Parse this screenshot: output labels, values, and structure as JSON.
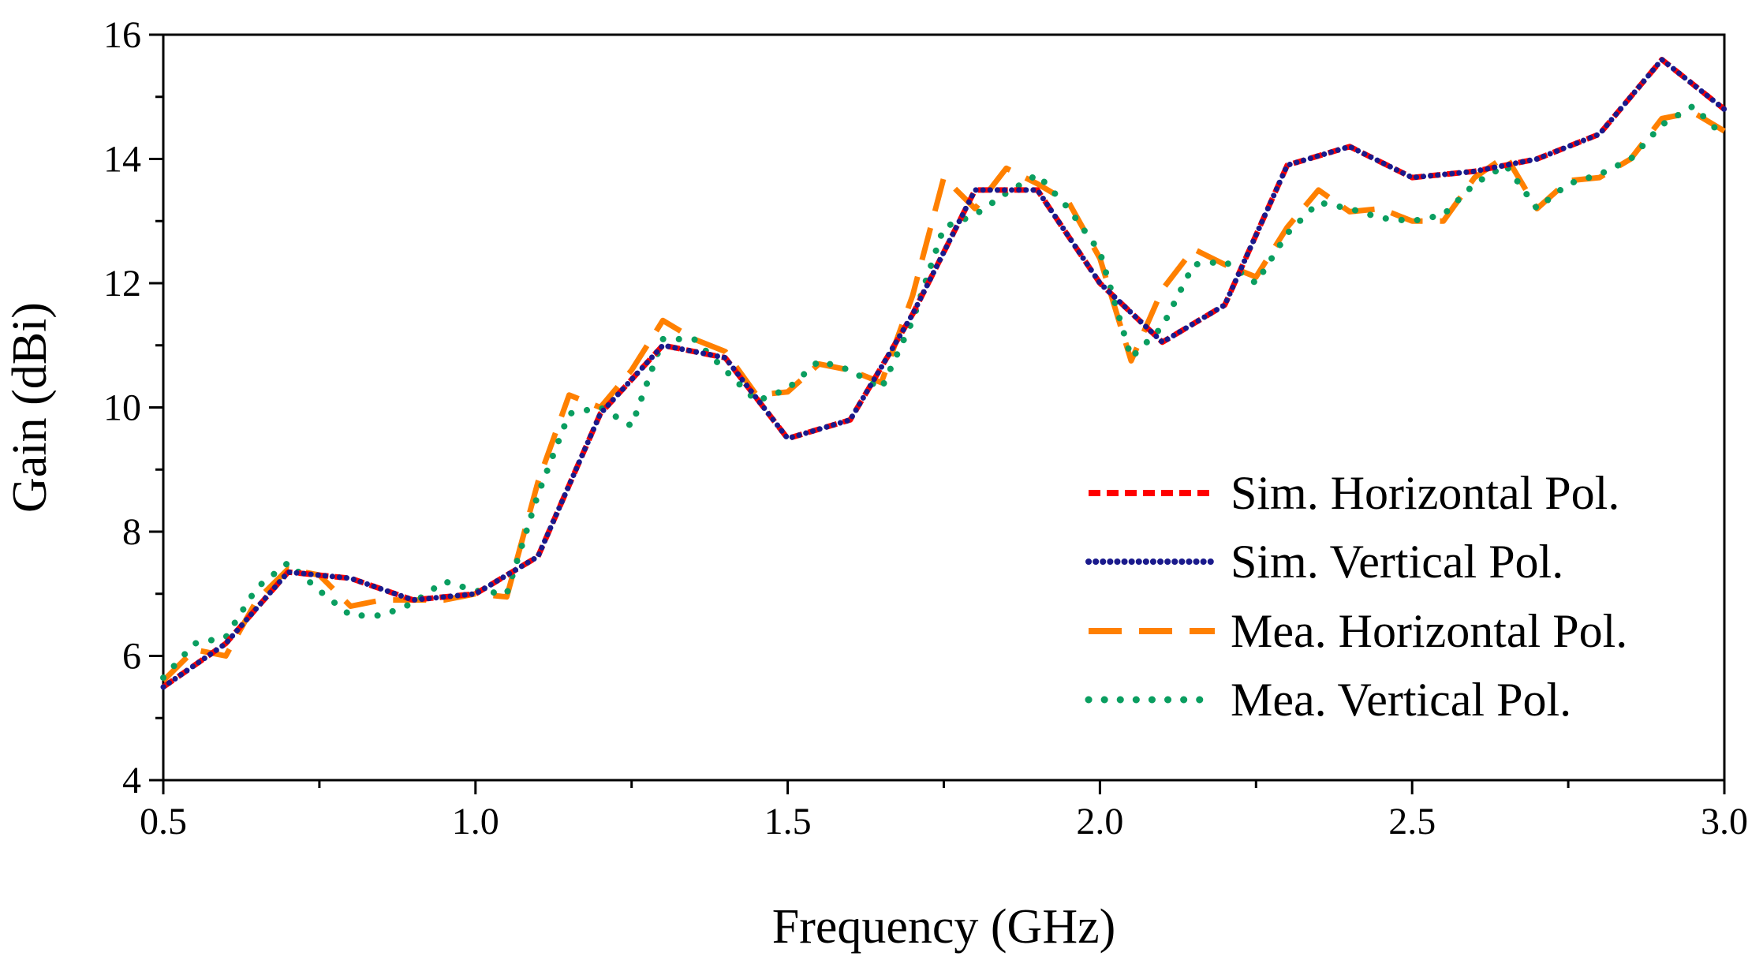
{
  "chart_data": {
    "type": "line",
    "title": "",
    "xlabel": "Frequency (GHz)",
    "ylabel": "Gain (dBi)",
    "xlim": [
      0.5,
      3.0
    ],
    "ylim": [
      4,
      16
    ],
    "x_major_ticks": [
      0.5,
      1.0,
      1.5,
      2.0,
      2.5,
      3.0
    ],
    "x_tick_labels": [
      "0.5",
      "1.0",
      "1.5",
      "2.0",
      "2.5",
      "3.0"
    ],
    "y_major_ticks": [
      4,
      6,
      8,
      10,
      12,
      14,
      16
    ],
    "y_tick_labels": [
      "4",
      "6",
      "8",
      "10",
      "12",
      "14",
      "16"
    ],
    "x_minor_step": 0.25,
    "y_minor_step": 1,
    "grid": false,
    "legend_position": "lower-right",
    "series": [
      {
        "name": "Sim. Horizontal Pol.",
        "color": "#ff0000",
        "dash": "dashed",
        "x": [
          0.5,
          0.6,
          0.7,
          0.8,
          0.9,
          1.0,
          1.1,
          1.2,
          1.3,
          1.4,
          1.5,
          1.6,
          1.7,
          1.8,
          1.9,
          2.0,
          2.1,
          2.2,
          2.3,
          2.4,
          2.5,
          2.6,
          2.7,
          2.8,
          2.9,
          3.0
        ],
        "y": [
          5.5,
          6.2,
          7.35,
          7.25,
          6.9,
          7.0,
          7.6,
          9.9,
          11.0,
          10.8,
          9.5,
          9.8,
          11.5,
          13.5,
          13.5,
          12.0,
          11.05,
          11.65,
          13.9,
          14.2,
          13.7,
          13.8,
          14.0,
          14.4,
          15.6,
          14.8
        ]
      },
      {
        "name": "Sim. Vertical Pol.",
        "color": "#1a1a8c",
        "dash": "dotted",
        "x": [
          0.5,
          0.6,
          0.7,
          0.8,
          0.9,
          1.0,
          1.1,
          1.2,
          1.3,
          1.4,
          1.5,
          1.6,
          1.7,
          1.8,
          1.9,
          2.0,
          2.1,
          2.2,
          2.3,
          2.4,
          2.5,
          2.6,
          2.7,
          2.8,
          2.9,
          3.0
        ],
        "y": [
          5.5,
          6.2,
          7.35,
          7.25,
          6.9,
          7.0,
          7.6,
          9.9,
          11.0,
          10.8,
          9.5,
          9.8,
          11.5,
          13.5,
          13.5,
          12.0,
          11.05,
          11.65,
          13.9,
          14.2,
          13.7,
          13.8,
          14.0,
          14.4,
          15.6,
          14.8
        ]
      },
      {
        "name": "Mea. Horizontal Pol.",
        "color": "#ff8000",
        "dash": "longdash",
        "x": [
          0.5,
          0.55,
          0.6,
          0.65,
          0.7,
          0.75,
          0.8,
          0.85,
          0.9,
          0.95,
          1.0,
          1.05,
          1.1,
          1.15,
          1.2,
          1.25,
          1.3,
          1.35,
          1.4,
          1.45,
          1.5,
          1.55,
          1.6,
          1.65,
          1.7,
          1.75,
          1.8,
          1.85,
          1.9,
          1.95,
          2.0,
          2.05,
          2.1,
          2.15,
          2.2,
          2.25,
          2.3,
          2.35,
          2.4,
          2.45,
          2.5,
          2.55,
          2.6,
          2.65,
          2.7,
          2.75,
          2.8,
          2.85,
          2.9,
          2.95,
          3.0
        ],
        "y": [
          5.6,
          6.1,
          6.0,
          6.9,
          7.4,
          7.3,
          6.8,
          6.9,
          6.9,
          6.9,
          7.0,
          6.95,
          8.8,
          10.2,
          10.0,
          10.6,
          11.4,
          11.1,
          10.9,
          10.2,
          10.25,
          10.7,
          10.6,
          10.4,
          11.8,
          13.7,
          13.2,
          13.85,
          13.6,
          13.3,
          12.4,
          10.75,
          11.9,
          12.55,
          12.3,
          12.1,
          12.9,
          13.5,
          13.15,
          13.2,
          13.0,
          13.0,
          13.7,
          14.05,
          13.2,
          13.65,
          13.7,
          14.0,
          14.65,
          14.75,
          14.45
        ]
      },
      {
        "name": "Mea. Vertical Pol.",
        "color": "#0a9e60",
        "dash": "sparse-dotted",
        "x": [
          0.5,
          0.55,
          0.6,
          0.65,
          0.7,
          0.75,
          0.8,
          0.85,
          0.9,
          0.95,
          1.0,
          1.05,
          1.1,
          1.15,
          1.2,
          1.25,
          1.3,
          1.35,
          1.4,
          1.45,
          1.5,
          1.55,
          1.6,
          1.65,
          1.7,
          1.75,
          1.8,
          1.85,
          1.9,
          1.95,
          2.0,
          2.05,
          2.1,
          2.15,
          2.2,
          2.25,
          2.3,
          2.35,
          2.4,
          2.45,
          2.5,
          2.55,
          2.6,
          2.65,
          2.7,
          2.75,
          2.8,
          2.85,
          2.9,
          2.95,
          3.0
        ],
        "y": [
          5.65,
          6.2,
          6.3,
          7.1,
          7.5,
          7.05,
          6.65,
          6.65,
          6.85,
          7.2,
          7.05,
          7.0,
          8.6,
          9.9,
          10.0,
          9.7,
          11.1,
          11.1,
          10.6,
          10.1,
          10.3,
          10.75,
          10.6,
          10.3,
          11.4,
          12.9,
          13.1,
          13.45,
          13.75,
          13.2,
          12.5,
          10.8,
          11.3,
          12.3,
          12.35,
          12.0,
          12.8,
          13.3,
          13.2,
          13.05,
          13.0,
          13.1,
          13.6,
          13.9,
          13.2,
          13.6,
          13.75,
          14.0,
          14.55,
          14.85,
          14.35
        ]
      }
    ]
  }
}
